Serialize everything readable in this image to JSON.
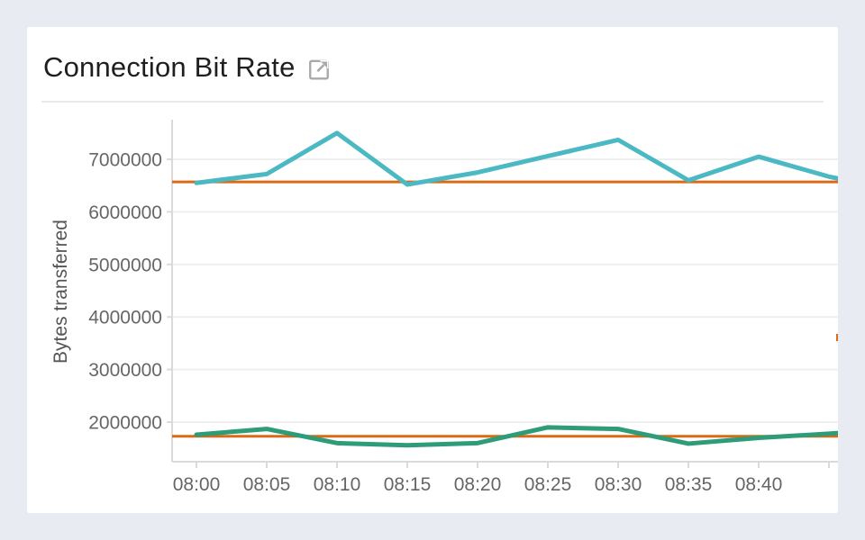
{
  "page": {
    "background": "#e8ebf2",
    "card_background": "#ffffff"
  },
  "header": {
    "title": "Connection Bit Rate",
    "title_color": "#1f1f1f",
    "icon": "external-link-icon",
    "icon_color": "#a9a9a9"
  },
  "chart_data": {
    "type": "line",
    "title": "Connection Bit Rate",
    "xlabel": "",
    "ylabel": "Bytes transferred",
    "categories": [
      "08:00",
      "08:05",
      "08:10",
      "08:15",
      "08:20",
      "08:25",
      "08:30",
      "08:35",
      "08:40",
      ""
    ],
    "series": [
      {
        "name": "bitrate-series-teal",
        "color": "#4bb9c4",
        "values": [
          6550000,
          6720000,
          7500000,
          6520000,
          6750000,
          7060000,
          7370000,
          6600000,
          7050000,
          6670000
        ],
        "edge_value": 6640000
      },
      {
        "name": "bitrate-series-green",
        "color": "#2e9b79",
        "values": [
          1760000,
          1870000,
          1600000,
          1560000,
          1600000,
          1900000,
          1870000,
          1590000,
          1700000,
          1780000
        ],
        "edge_value": 1790000
      }
    ],
    "thresholds": [
      {
        "value": 6570000,
        "color": "#d96b16"
      },
      {
        "value": 1730000,
        "color": "#d96b16"
      }
    ],
    "y_ticks": [
      2000000,
      3000000,
      4000000,
      5000000,
      6000000,
      7000000
    ],
    "ylim": [
      1250000,
      7750000
    ],
    "grid": "horizontal",
    "legend": "none",
    "grid_color": "#efefef",
    "axis_color": "#dadada",
    "tick_label_color": "#666666",
    "axis_title_color": "#555555"
  }
}
